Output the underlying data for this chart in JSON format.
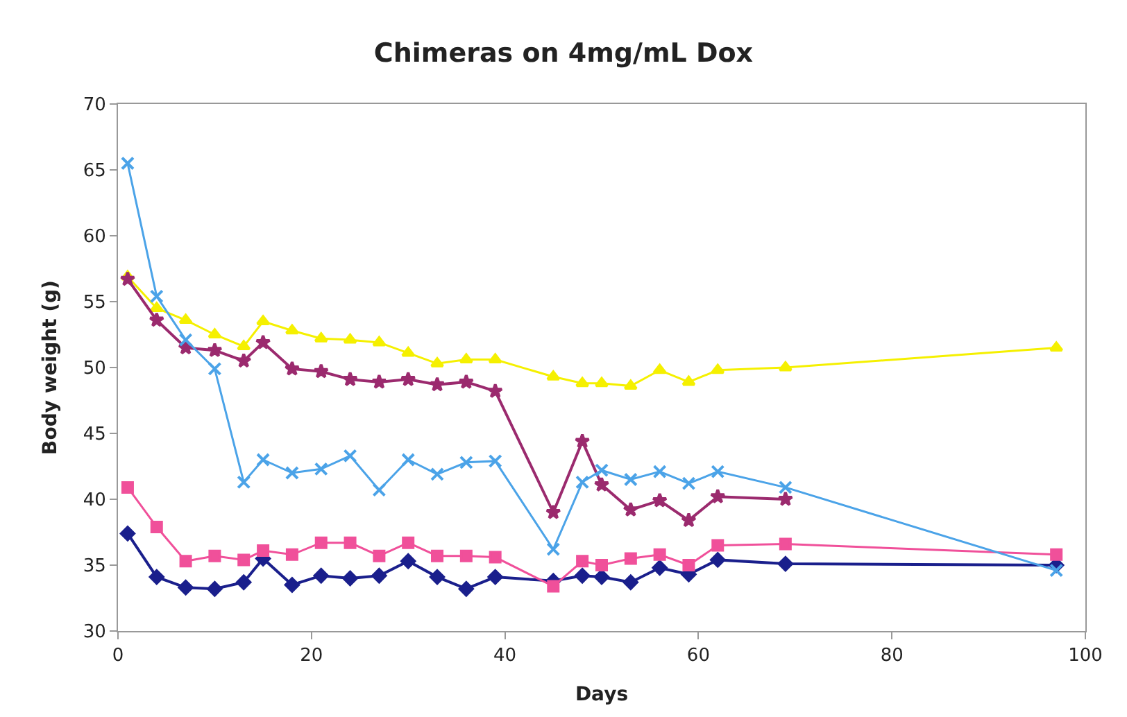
{
  "chart_data": {
    "type": "line",
    "title": "Chimeras on 4mg/mL Dox",
    "xlabel": "Days",
    "ylabel": "Body weight (g)",
    "x": [
      1,
      4,
      7,
      10,
      13,
      15,
      18,
      21,
      24,
      27,
      30,
      33,
      36,
      39,
      45,
      48,
      50,
      53,
      56,
      59,
      62,
      69,
      97
    ],
    "series": [
      {
        "color": "#1a1f8c",
        "marker": "diamond",
        "values": [
          37.4,
          34.1,
          33.3,
          33.2,
          33.7,
          35.5,
          33.5,
          34.2,
          34.0,
          34.2,
          35.3,
          34.1,
          33.2,
          34.1,
          33.8,
          34.2,
          34.1,
          33.7,
          34.8,
          34.3,
          35.4,
          35.1,
          35.0
        ]
      },
      {
        "color": "#f0509a",
        "marker": "square",
        "values": [
          40.9,
          37.9,
          35.3,
          35.7,
          35.4,
          36.1,
          35.8,
          36.7,
          36.7,
          35.7,
          36.7,
          35.7,
          35.7,
          35.6,
          33.4,
          35.3,
          35.0,
          35.5,
          35.8,
          35.0,
          36.5,
          36.6,
          35.8
        ]
      },
      {
        "color": "#f5f000",
        "marker": "triangle",
        "values": [
          56.9,
          54.5,
          53.6,
          52.5,
          51.6,
          53.5,
          52.8,
          52.2,
          52.1,
          51.9,
          51.1,
          50.3,
          50.6,
          50.6,
          49.3,
          48.8,
          48.8,
          48.6,
          49.8,
          48.9,
          49.8,
          50.0,
          51.5
        ]
      },
      {
        "color": "#9b2a6e",
        "marker": "star",
        "values": [
          56.7,
          53.6,
          51.5,
          51.3,
          50.5,
          51.9,
          49.9,
          49.7,
          49.1,
          48.9,
          49.1,
          48.7,
          48.9,
          48.2,
          39.0,
          44.4,
          41.1,
          39.2,
          39.9,
          38.4,
          40.2,
          40.0,
          null
        ]
      },
      {
        "color": "#4ba3e8",
        "marker": "cross",
        "values": [
          65.5,
          55.4,
          52.1,
          49.9,
          41.3,
          43.0,
          42.0,
          42.3,
          43.3,
          40.7,
          43.0,
          41.9,
          42.8,
          42.9,
          36.2,
          41.3,
          42.2,
          41.5,
          42.1,
          41.2,
          42.1,
          40.9,
          34.6
        ]
      }
    ],
    "xlim": [
      0,
      100
    ],
    "xticks": [
      0,
      20,
      40,
      60,
      80,
      100
    ],
    "ylim": [
      30,
      70
    ],
    "yticks": [
      30,
      35,
      40,
      45,
      50,
      55,
      60,
      65,
      70
    ],
    "line_style": "solid"
  }
}
